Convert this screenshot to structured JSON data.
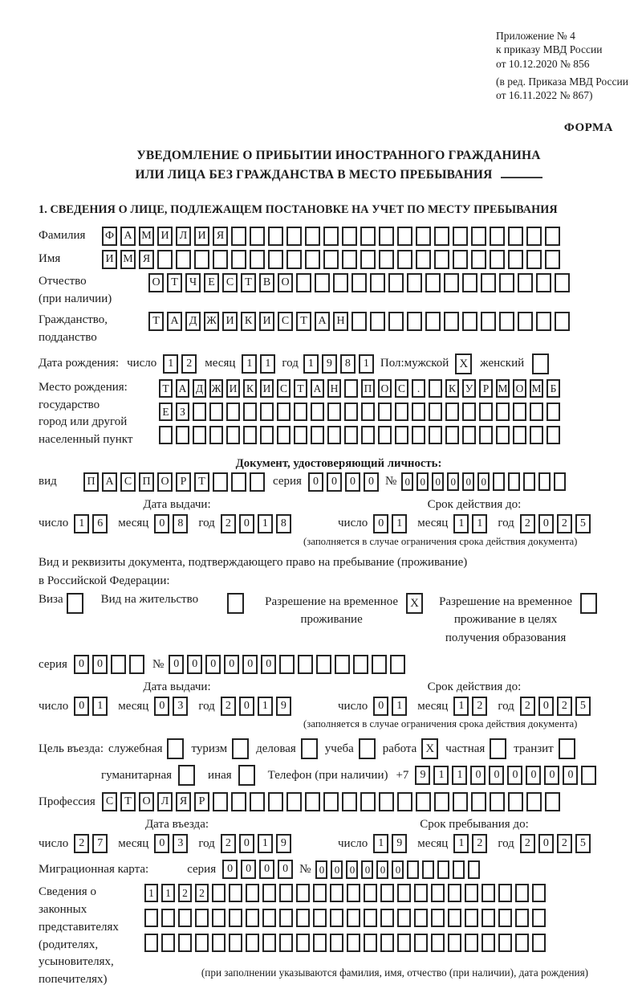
{
  "header": {
    "ref_lines": [
      "Приложение № 4",
      "к приказу МВД России",
      "от 10.12.2020 № 856"
    ],
    "ref_lines2": [
      "(в ред. Приказа МВД России",
      "от 16.11.2022 № 867)"
    ],
    "form_label": "ФОРМА"
  },
  "title": {
    "line1": "УВЕДОМЛЕНИЕ О ПРИБЫТИИ ИНОСТРАННОГО ГРАЖДАНИНА",
    "line2": "ИЛИ ЛИЦА БЕЗ ГРАЖДАНСТВА В МЕСТО ПРЕБЫВАНИЯ"
  },
  "section1_heading": "1. СВЕДЕНИЯ О ЛИЦЕ, ПОДЛЕЖАЩЕМ ПОСТАНОВКЕ НА УЧЕТ ПО МЕСТУ ПРЕБЫВАНИЯ",
  "date_labels": {
    "num": "число",
    "month": "месяц",
    "year": "год"
  },
  "person": {
    "surname": {
      "label": "Фамилия",
      "boxes": {
        "value": "ФАМИЛИЯ",
        "length": 25
      }
    },
    "given_name": {
      "label": "Имя",
      "boxes": {
        "value": "ИМЯ",
        "length": 25
      }
    },
    "patronymic": {
      "label": "Отчество",
      "sublabel": "(при наличии)",
      "boxes": {
        "value": "ОТЧЕСТВО",
        "length": 23
      }
    },
    "citizenship": {
      "label": "Гражданство,",
      "sublabel": "подданство",
      "boxes": {
        "value": "ТАДЖИКИСТАН",
        "length": 23
      }
    },
    "birth_date": {
      "label": "Дата рождения:",
      "day": "12",
      "month": "11",
      "year": "1981"
    },
    "sex": {
      "label": "Пол: ",
      "male_label": "мужской",
      "male_checked": true,
      "female_label": "женский",
      "female_checked": false
    },
    "birth_place": {
      "label_lines": [
        "Место рождения:",
        "государство",
        "город или другой",
        "населенный пункт"
      ],
      "rows": [
        {
          "value": "ТАДЖИКИСТАН ПОС. КУРМОМБ",
          "length": 24
        },
        {
          "value": "ЕЗ",
          "length": 24
        },
        {
          "value": "",
          "length": 24
        }
      ]
    }
  },
  "identity_doc": {
    "heading": "Документ, удостоверяющий личность:",
    "kind_label": "вид",
    "kind": {
      "value": "ПАСПОРТ",
      "length": 10
    },
    "series_label": "серия",
    "series": "0000",
    "number_label": "№",
    "number": {
      "value": "000000",
      "length": 11
    },
    "issue_title": "Дата выдачи:",
    "issue": {
      "day": "16",
      "month": "08",
      "year": "2018"
    },
    "valid_title": "Срок действия до:",
    "valid": {
      "day": "01",
      "month": "11",
      "year": "2025"
    },
    "note": "(заполняется в случае ограничения срока действия документа)"
  },
  "stay_doc": {
    "intro1": "Вид и реквизиты документа, подтверждающего право на пребывание (проживание)",
    "intro2": "в Российской Федерации:",
    "visa_label": "Виза",
    "visa_checked": false,
    "residence_label": "Вид на жительство",
    "residence_checked": false,
    "rvp_lines": [
      "Разрешение на временное",
      "проживание"
    ],
    "rvp_checked": true,
    "rvp_edu_lines": [
      "Разрешение на временное",
      "проживание в целях",
      "получения образования"
    ],
    "rvp_edu_checked": false,
    "series_label": "серия",
    "series": {
      "value": "00",
      "length": 4
    },
    "number_label": "№",
    "number": {
      "value": "000000",
      "length": 13
    },
    "issue_title": "Дата выдачи:",
    "issue": {
      "day": "01",
      "month": "03",
      "year": "2019"
    },
    "valid_title": "Срок действия до:",
    "valid": {
      "day": "01",
      "month": "12",
      "year": "2025"
    },
    "note": "(заполняется в случае ограничения срока действия документа)"
  },
  "purpose": {
    "label": "Цель въезда:",
    "options": [
      {
        "label": "служебная",
        "checked": false
      },
      {
        "label": "туризм",
        "checked": false
      },
      {
        "label": "деловая",
        "checked": false
      },
      {
        "label": "учеба",
        "checked": false
      },
      {
        "label": "работа",
        "checked": true
      },
      {
        "label": "частная",
        "checked": false
      },
      {
        "label": "транзит",
        "checked": false
      },
      {
        "label": "гуманитарная",
        "checked": false
      },
      {
        "label": "иная",
        "checked": false
      }
    ]
  },
  "phone": {
    "label": "Телефон (при наличии)",
    "prefix": "+7",
    "boxes": {
      "value": "911000000",
      "length": 10
    }
  },
  "profession": {
    "label": "Профессия",
    "boxes": {
      "value": "СТОЛЯР",
      "length": 25
    }
  },
  "entry": {
    "entry_title": "Дата въезда:",
    "entry_date": {
      "day": "27",
      "month": "03",
      "year": "2019"
    },
    "stay_title": "Срок пребывания до:",
    "stay_date": {
      "day": "19",
      "month": "12",
      "year": "2025"
    }
  },
  "migration_card": {
    "label": "Миграционная карта:",
    "series_label": "серия",
    "series": "0000",
    "number_label": "№",
    "number": {
      "value": "000000",
      "length": 11
    }
  },
  "representatives": {
    "label_lines": [
      "Сведения о",
      "законных",
      "представителях",
      "(родителях,",
      "усыновителях,",
      "попечителях)"
    ],
    "rows": [
      {
        "value": "1122",
        "length": 24
      },
      {
        "value": "",
        "length": 24
      },
      {
        "value": "",
        "length": 24
      }
    ],
    "note": "(при заполнении указываются фамилия, имя, отчество (при наличии), дата рождения)"
  }
}
